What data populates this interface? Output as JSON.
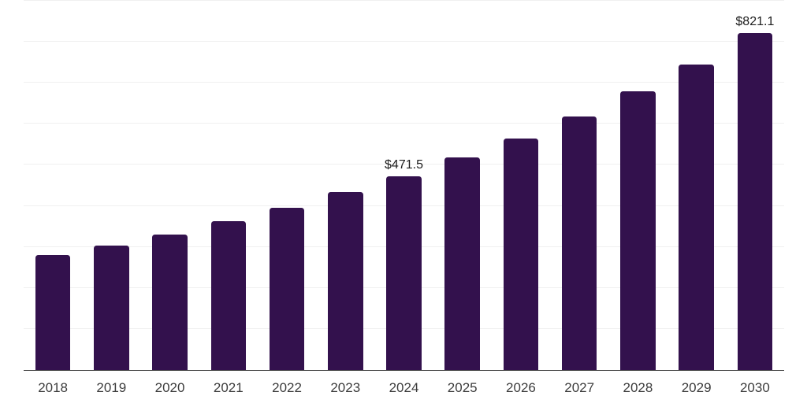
{
  "chart_data": {
    "type": "bar",
    "title": "",
    "xlabel": "",
    "ylabel": "",
    "categories": [
      "2018",
      "2019",
      "2020",
      "2021",
      "2022",
      "2023",
      "2024",
      "2025",
      "2026",
      "2027",
      "2028",
      "2029",
      "2030"
    ],
    "values": [
      280,
      304,
      330,
      363,
      396,
      433,
      471.5,
      518,
      564,
      618,
      680,
      745,
      821.1
    ],
    "data_labels": {
      "2024": "$471.5",
      "2030": "$821.1"
    },
    "ylim": [
      0,
      900
    ],
    "gridline_step": 100,
    "grid": true,
    "legend_position": "none",
    "y_tick_labels_shown": false
  },
  "colors": {
    "background": "#FFFFFF",
    "bar": "#33114D",
    "gridline": "#F0F0F0",
    "axis_line": "#2B2B2B",
    "tick_label": "#3D3D3D",
    "data_label": "#1C1C1C"
  }
}
